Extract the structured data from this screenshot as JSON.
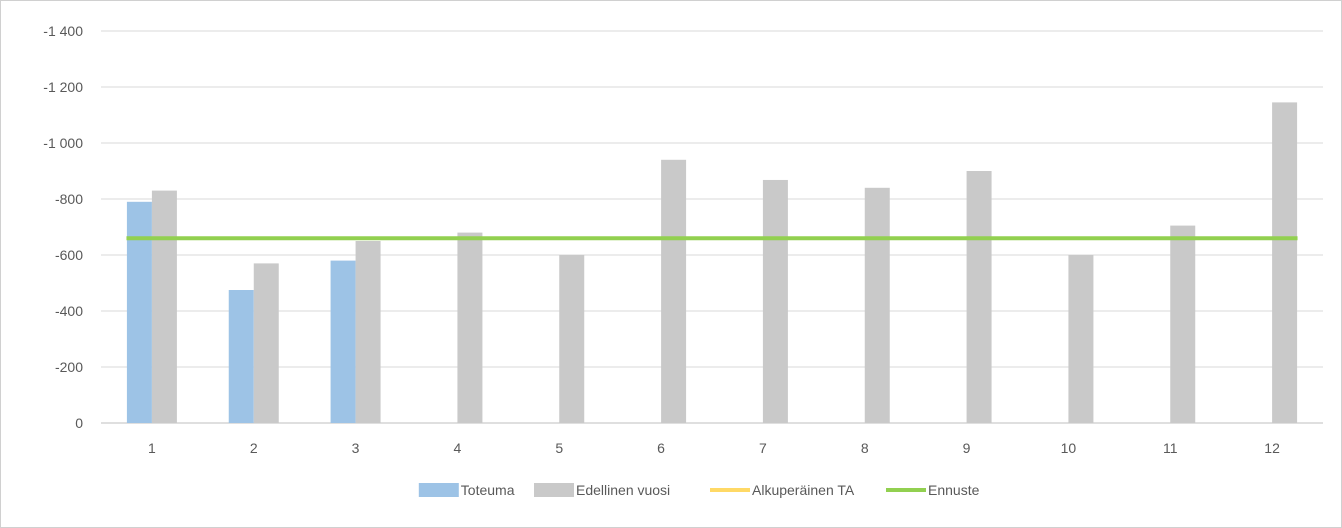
{
  "chart_data": {
    "type": "bar",
    "title": "",
    "xlabel": "",
    "ylabel": "",
    "categories": [
      "1",
      "2",
      "3",
      "4",
      "5",
      "6",
      "7",
      "8",
      "9",
      "10",
      "11",
      "12"
    ],
    "y_ticks": [
      0,
      -200,
      -400,
      -600,
      -800,
      -1000,
      -1200,
      -1400
    ],
    "y_tick_labels": [
      "0",
      "-200",
      "-400",
      "-600",
      "-800",
      "-1 000",
      "-1 200",
      "-1 400"
    ],
    "ylim": [
      0,
      -1400
    ],
    "y_axis_reversed": true,
    "grid": true,
    "legend_position": "bottom",
    "series": [
      {
        "name": "Toteuma",
        "kind": "bar",
        "color": "#9dc3e6",
        "values": [
          -790,
          -475,
          -580,
          null,
          null,
          null,
          null,
          null,
          null,
          null,
          null,
          null
        ]
      },
      {
        "name": "Edellinen vuosi",
        "kind": "bar",
        "color": "#c9c9c9",
        "values": [
          -830,
          -570,
          -650,
          -680,
          -600,
          -940,
          -868,
          -840,
          -900,
          -600,
          -705,
          -1145
        ]
      },
      {
        "name": "Alkuperäinen TA",
        "kind": "line",
        "color": "#ffd966",
        "values": [
          null,
          null,
          null,
          null,
          null,
          null,
          null,
          null,
          null,
          null,
          null,
          null
        ]
      },
      {
        "name": "Ennuste",
        "kind": "line",
        "color": "#92d050",
        "values": [
          -660,
          -660,
          -660,
          -660,
          -660,
          -660,
          -660,
          -660,
          -660,
          -660,
          -660,
          -660
        ]
      }
    ]
  }
}
